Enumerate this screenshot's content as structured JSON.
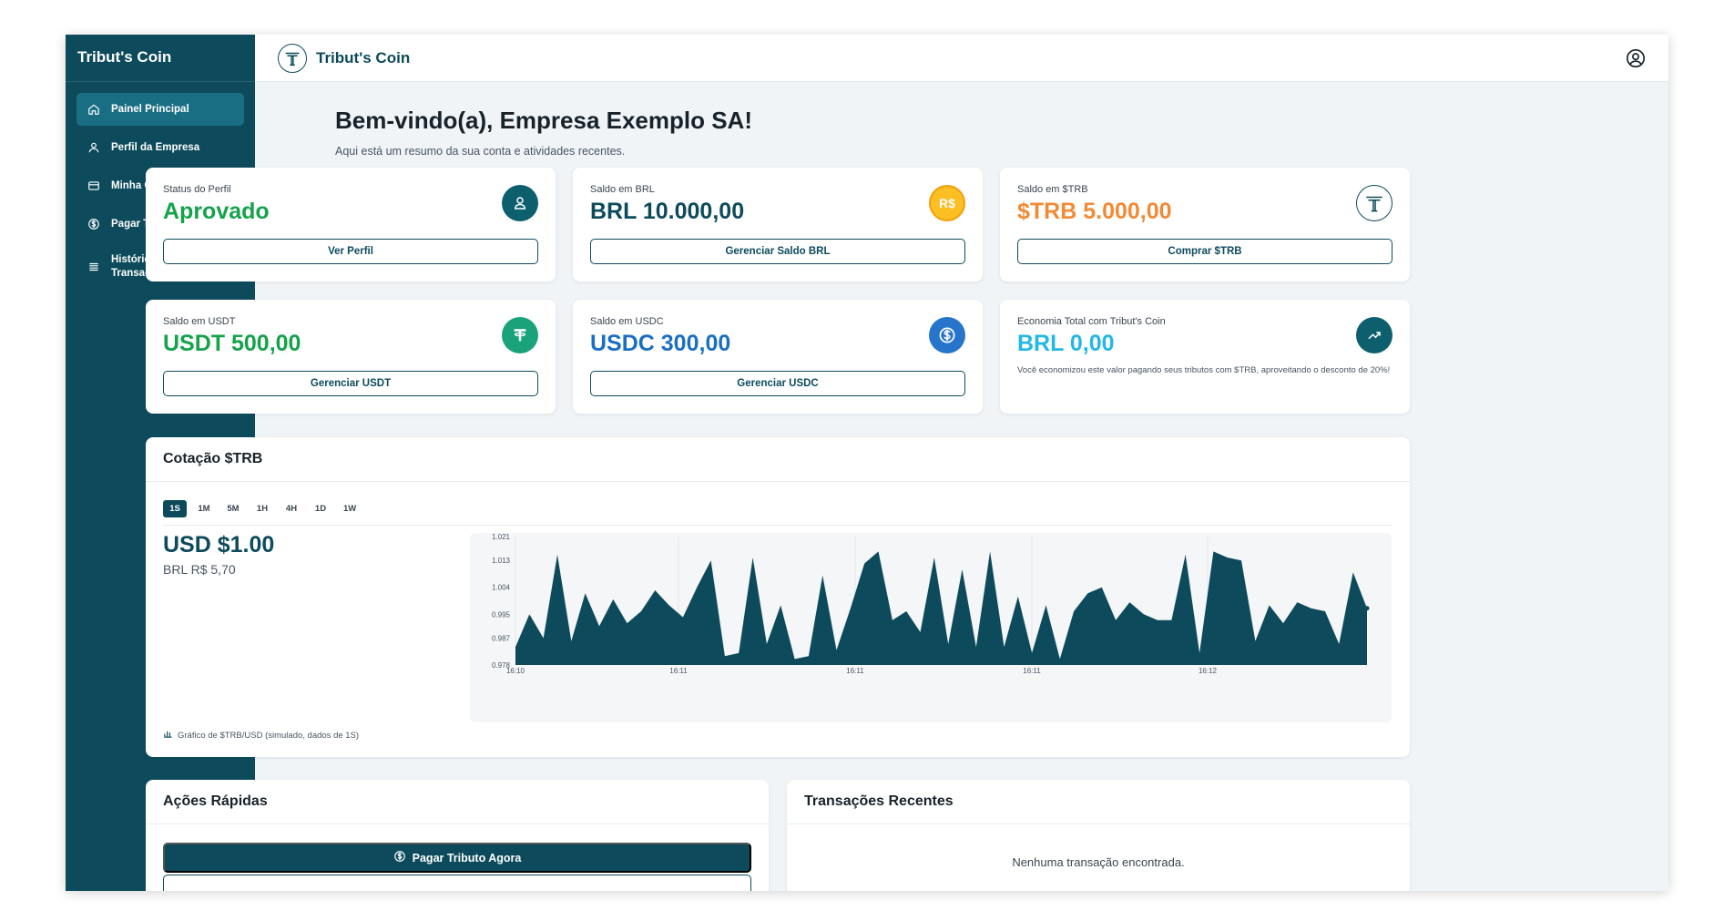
{
  "sidebar": {
    "brand": "Tribut's Coin",
    "items": [
      {
        "label": "Painel Principal",
        "icon": "home-icon"
      },
      {
        "label": "Perfil da Empresa",
        "icon": "user-icon"
      },
      {
        "label": "Minha Carteira",
        "icon": "wallet-icon"
      },
      {
        "label": "Pagar Tributos",
        "icon": "dollar-circle-icon"
      },
      {
        "label": "Histórico de Transações",
        "icon": "list-icon"
      }
    ]
  },
  "topbar": {
    "title": "Tribut's Coin"
  },
  "welcome": {
    "title": "Bem-vindo(a), Empresa Exemplo SA!",
    "subtitle": "Aqui está um resumo da sua conta e atividades recentes."
  },
  "cards": [
    {
      "label": "Status do Perfil",
      "value": "Aprovado",
      "button": "Ver Perfil",
      "color": "#15a34a"
    },
    {
      "label": "Saldo em BRL",
      "value": "BRL 10.000,00",
      "button": "Gerenciar Saldo BRL",
      "color": "#0d4b5c"
    },
    {
      "label": "Saldo em $TRB",
      "value": "$TRB 5.000,00",
      "button": "Comprar $TRB",
      "color": "#f28a35"
    },
    {
      "label": "Saldo em USDT",
      "value": "USDT 500,00",
      "button": "Gerenciar USDT",
      "color": "#15a34a"
    },
    {
      "label": "Saldo em USDC",
      "value": "USDC 300,00",
      "button": "Gerenciar USDC",
      "color": "#1a6fc4"
    },
    {
      "label": "Economia Total com Tribut's Coin",
      "value": "BRL 0,00",
      "note": "Você economizou este valor pagando seus tributos com $TRB, aproveitando o desconto de 20%!",
      "color": "#22b8e6"
    }
  ],
  "brl_icon_text": "R$",
  "quote": {
    "title": "Cotação $TRB",
    "tabs": [
      "1S",
      "1M",
      "5M",
      "1H",
      "4H",
      "1D",
      "1W"
    ],
    "active_tab": "1S",
    "usd_price": "USD $1.00",
    "brl_price": "BRL R$ 5,70",
    "caption": "Gráfico de $TRB/USD (simulado, dados de 1S)"
  },
  "chart_data": {
    "type": "area",
    "ylim": [
      0.978,
      1.021
    ],
    "y_ticks": [
      "1.021",
      "1.013",
      "1.004",
      "0.995",
      "0.987",
      "0.978"
    ],
    "x_ticks": [
      "16:10",
      "16:11",
      "16:11",
      "16:11",
      "16:12"
    ],
    "color": "#0d4b5c",
    "values": [
      0.984,
      0.995,
      0.987,
      1.015,
      0.986,
      1.002,
      0.991,
      1.0,
      0.992,
      0.996,
      1.003,
      0.998,
      0.994,
      1.004,
      1.013,
      0.981,
      0.982,
      1.014,
      0.985,
      0.998,
      0.98,
      0.981,
      1.008,
      0.983,
      0.997,
      1.012,
      1.016,
      0.993,
      0.996,
      0.989,
      1.014,
      0.985,
      1.01,
      0.984,
      1.016,
      0.984,
      1.001,
      0.982,
      0.998,
      0.98,
      0.996,
      1.002,
      1.004,
      0.993,
      0.999,
      0.995,
      0.993,
      0.993,
      1.015,
      0.982,
      1.016,
      1.014,
      1.013,
      0.986,
      0.998,
      0.992,
      0.999,
      0.997,
      0.996,
      0.985,
      1.009,
      0.997
    ]
  },
  "quick_actions": {
    "title": "Ações Rápidas",
    "pay_button": "Pagar Tributo Agora"
  },
  "recent": {
    "title": "Transações Recentes",
    "empty": "Nenhuma transação encontrada."
  }
}
